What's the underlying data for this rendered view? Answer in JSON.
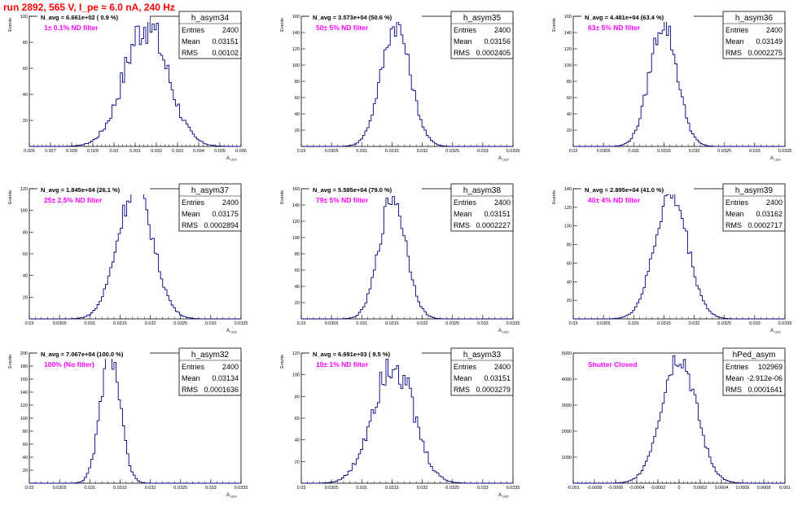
{
  "page_title": "run 2892,   565 V, I_pe ≈ 6.0 nA, 240 Hz",
  "colors": {
    "histogram": "#000080",
    "annotation": "#ff00ff",
    "title_text": "#ff0000",
    "axes": "#000000"
  },
  "stat_labels": {
    "entries": "Entries",
    "mean": "Mean",
    "rms": "RMS"
  },
  "chart_data": [
    {
      "type": "histogram",
      "name": "h_asym34",
      "navg": "N_avg = 6.661e+02 ( 0.9 %)",
      "note": "1± 0.1% ND filter",
      "entries": "2400",
      "mean": "0.03151",
      "rms": "0.00102",
      "ylabel": "Events",
      "xlabel": "A_LED",
      "xlim": [
        0.026,
        0.036
      ],
      "ylim": [
        0,
        100
      ],
      "xticks": [
        "0.026",
        "0.027",
        "0.028",
        "0.029",
        "0.03",
        "0.031",
        "0.032",
        "0.033",
        "0.034",
        "0.035",
        "0.036"
      ],
      "yticks": [
        "20",
        "40",
        "60",
        "80",
        "100"
      ],
      "peak": 95,
      "center": 0.03151,
      "sigma": 0.00102,
      "noisy": true,
      "grid": false
    },
    {
      "type": "histogram",
      "name": "h_asym35",
      "navg": "N_avg = 3.573e+04 (50.6 %)",
      "note": "50± 5% ND filter",
      "entries": "2400",
      "mean": "0.03156",
      "rms": "0.0002405",
      "ylabel": "Events",
      "xlabel": "A_LED",
      "xlim": [
        0.03,
        0.0335
      ],
      "ylim": [
        0,
        160
      ],
      "xticks": [
        "0.03",
        "0.0305",
        "0.031",
        "0.0315",
        "0.032",
        "0.0325",
        "0.033",
        "0.0335"
      ],
      "yticks": [
        "20",
        "40",
        "60",
        "80",
        "100",
        "120",
        "140",
        "160"
      ],
      "peak": 150,
      "center": 0.03156,
      "sigma": 0.0002405,
      "noisy": false,
      "grid": false
    },
    {
      "type": "histogram",
      "name": "h_asym36",
      "navg": "N_avg = 4.481e+04 (63.4 %)",
      "note": "63± 5% ND filter",
      "entries": "2400",
      "mean": "0.03149",
      "rms": "0.0002275",
      "ylabel": "Events",
      "xlabel": "A_LED",
      "xlim": [
        0.03,
        0.0335
      ],
      "ylim": [
        0,
        160
      ],
      "xticks": [
        "0.03",
        "0.0305",
        "0.031",
        "0.0315",
        "0.032",
        "0.0325",
        "0.033",
        "0.0335"
      ],
      "yticks": [
        "20",
        "40",
        "60",
        "80",
        "100",
        "120",
        "140",
        "160"
      ],
      "peak": 152,
      "center": 0.03149,
      "sigma": 0.0002275,
      "noisy": false,
      "grid": false
    },
    {
      "type": "histogram",
      "name": "h_asym37",
      "navg": "N_avg = 1.845e+04 (26.1 %)",
      "note": "25± 2.5% ND filter",
      "entries": "2400",
      "mean": "0.03175",
      "rms": "0.0002894",
      "ylabel": "Events",
      "xlabel": "A_LED",
      "xlim": [
        0.03,
        0.0335
      ],
      "ylim": [
        0,
        120
      ],
      "xticks": [
        "0.03",
        "0.0305",
        "0.031",
        "0.0315",
        "0.032",
        "0.0325",
        "0.033",
        "0.0335"
      ],
      "yticks": [
        "20",
        "40",
        "60",
        "80",
        "100",
        "120"
      ],
      "peak": 122,
      "center": 0.03175,
      "sigma": 0.0002894,
      "noisy": false,
      "grid": false
    },
    {
      "type": "histogram",
      "name": "h_asym38",
      "navg": "N_avg = 5.585e+04 (79.0 %)",
      "note": "79± 5% ND filter",
      "entries": "2400",
      "mean": "0.03151",
      "rms": "0.0002227",
      "ylabel": "Events",
      "xlabel": "A_LED",
      "xlim": [
        0.03,
        0.0335
      ],
      "ylim": [
        0,
        160
      ],
      "xticks": [
        "0.03",
        "0.0305",
        "0.031",
        "0.0315",
        "0.032",
        "0.0325",
        "0.033",
        "0.0335"
      ],
      "yticks": [
        "20",
        "40",
        "60",
        "80",
        "100",
        "120",
        "140",
        "160"
      ],
      "peak": 150,
      "center": 0.03151,
      "sigma": 0.0002227,
      "noisy": false,
      "grid": false
    },
    {
      "type": "histogram",
      "name": "h_asym39",
      "navg": "N_avg = 2.895e+04 (41.0 %)",
      "note": "40± 4% ND filter",
      "entries": "2400",
      "mean": "0.03162",
      "rms": "0.0002717",
      "ylabel": "Events",
      "xlabel": "A_LED",
      "xlim": [
        0.03,
        0.0335
      ],
      "ylim": [
        0,
        140
      ],
      "xticks": [
        "0.03",
        "0.0305",
        "0.031",
        "0.0315",
        "0.032",
        "0.0325",
        "0.033",
        "0.0335"
      ],
      "yticks": [
        "20",
        "40",
        "60",
        "80",
        "100",
        "120",
        "140"
      ],
      "peak": 135,
      "center": 0.03162,
      "sigma": 0.0002717,
      "noisy": false,
      "grid": false
    },
    {
      "type": "histogram",
      "name": "h_asym32",
      "navg": "N_avg = 7.067e+04 (100.0 %)",
      "note": "100% (No filter)",
      "entries": "2400",
      "mean": "0.03134",
      "rms": "0.0001636",
      "ylabel": "Events",
      "xlabel": "A_LED",
      "xlim": [
        0.03,
        0.0335
      ],
      "ylim": [
        0,
        200
      ],
      "xticks": [
        "0.03",
        "0.0305",
        "0.031",
        "0.0315",
        "0.032",
        "0.0325",
        "0.033",
        "0.0335"
      ],
      "yticks": [
        "20",
        "40",
        "60",
        "80",
        "100",
        "120",
        "140",
        "160",
        "180",
        "200"
      ],
      "peak": 200,
      "center": 0.03134,
      "sigma": 0.0001636,
      "noisy": false,
      "grid": false
    },
    {
      "type": "histogram",
      "name": "h_asym33",
      "navg": "N_avg = 6.691e+03 ( 9.5 %)",
      "note": "10± 1% ND filter",
      "entries": "2400",
      "mean": "0.03151",
      "rms": "0.0003279",
      "ylabel": "Events",
      "xlabel": "A_LED",
      "xlim": [
        0.03,
        0.0335
      ],
      "ylim": [
        0,
        120
      ],
      "xticks": [
        "0.03",
        "0.0305",
        "0.031",
        "0.0315",
        "0.032",
        "0.0325",
        "0.033",
        "0.0335"
      ],
      "yticks": [
        "20",
        "40",
        "60",
        "80",
        "100",
        "120"
      ],
      "peak": 115,
      "center": 0.03151,
      "sigma": 0.0003279,
      "noisy": true,
      "grid": false
    },
    {
      "type": "histogram",
      "name": "hPed_asym",
      "navg": "",
      "note": "Shutter Closed",
      "entries": "102969",
      "mean": "-2.912e-06",
      "rms": "0.0001641",
      "ylabel": "",
      "xlabel": "",
      "xlim": [
        -0.001,
        0.001
      ],
      "ylim": [
        0,
        5000
      ],
      "xticks": [
        "-0.001",
        "-0.0008",
        "-0.0006",
        "-0.0004",
        "-0.0002",
        "0",
        "0.0002",
        "0.0004",
        "0.0006",
        "0.0008",
        "0.001"
      ],
      "yticks": [
        "1000",
        "2000",
        "3000",
        "4000",
        "5000"
      ],
      "peak": 4900,
      "center": -3e-06,
      "sigma": 0.0001641,
      "noisy": false,
      "grid": false
    }
  ]
}
